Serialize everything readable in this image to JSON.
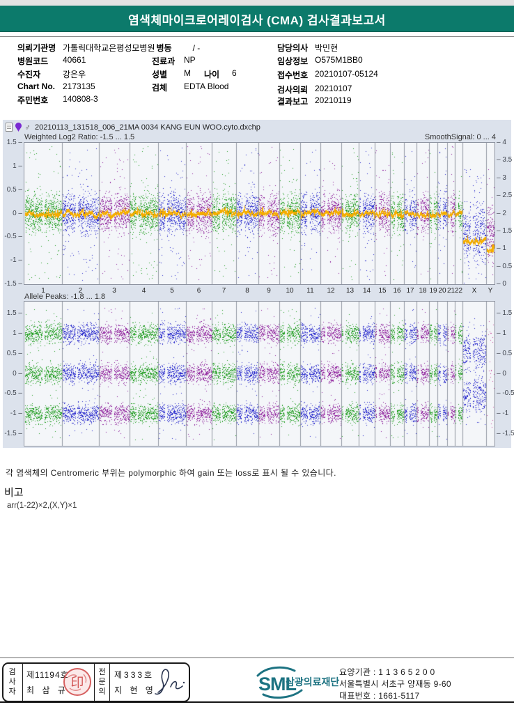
{
  "header": {
    "title": "염색체마이크로어레이검사 (CMA) 검사결과보고서",
    "banner_color": "#0c7a6b"
  },
  "patient": {
    "fields": [
      {
        "label": "의뢰기관명",
        "value": "가톨릭대학교은평성모병원"
      },
      {
        "label": "병동",
        "value": "/ -"
      },
      {
        "label": "병원코드",
        "value": "40661"
      },
      {
        "label": "진료과",
        "value": "NP"
      },
      {
        "label": "수진자",
        "value": "강은우"
      },
      {
        "label": "성별",
        "value": "M"
      },
      {
        "label": "나이",
        "value": "6"
      },
      {
        "label": "Chart No.",
        "value": "2173135"
      },
      {
        "label": "검체",
        "value": "EDTA Blood"
      },
      {
        "label": "주민번호",
        "value": "140808-3"
      },
      {
        "label": "담당의사",
        "value": "박민현"
      },
      {
        "label": "임상정보",
        "value": "O575M1BB0"
      },
      {
        "label": "접수번호",
        "value": "20210107-05124"
      },
      {
        "label": "검사의뢰",
        "value": "20210107"
      },
      {
        "label": "결과보고",
        "value": "20210119"
      }
    ]
  },
  "viewer": {
    "filename": "20210113_131518_006_21MA 0034 KANG EUN WOO.cyto.dxchp",
    "male_symbol": "♂",
    "icons": [
      "document-icon",
      "pin-icon",
      "male-icon"
    ]
  },
  "chart_data": [
    {
      "type": "scatter",
      "title": "Weighted Log2 Ratio: -1.5 ... 1.5",
      "right_axis_title": "SmoothSignal: 0 ... 4",
      "categories": [
        "1",
        "2",
        "3",
        "4",
        "5",
        "6",
        "7",
        "8",
        "9",
        "10",
        "11",
        "12",
        "13",
        "14",
        "15",
        "16",
        "17",
        "18",
        "19",
        "20",
        "21",
        "22",
        "X",
        "Y"
      ],
      "category_sizes_mb": [
        249,
        243,
        198,
        191,
        181,
        171,
        159,
        146,
        141,
        135,
        135,
        134,
        115,
        107,
        102,
        90,
        83,
        80,
        59,
        64,
        47,
        51,
        155,
        57
      ],
      "ylim": [
        -1.5,
        1.5
      ],
      "yticks_left": [
        1.5,
        1,
        0.5,
        0,
        -0.5,
        -1,
        -1.5
      ],
      "right_ylim": [
        0,
        4
      ],
      "yticks_right": [
        4,
        3.5,
        3,
        2.5,
        2,
        1.5,
        1,
        0.5,
        0
      ],
      "point_color_cycle": [
        "#1d9c1d",
        "#2626cc",
        "#8e1f9c"
      ],
      "signal_color": "#f5ad00",
      "segments": [
        {
          "chromosomes": "1-22",
          "log2_ratio": 0,
          "copy_number": 2
        },
        {
          "chromosomes": "X",
          "log2_ratio": -0.6,
          "copy_number": 1
        },
        {
          "chromosomes": "Y",
          "log2_ratio": -0.78,
          "copy_number": 1
        }
      ]
    },
    {
      "type": "scatter",
      "title": "Allele Peaks: -1.8 ... 1.8",
      "ylim": [
        -1.8,
        1.8
      ],
      "yticks": [
        1.5,
        1,
        0.5,
        0,
        -0.5,
        -1,
        -1.5
      ],
      "autosome_allele_bands": [
        1,
        0,
        -1
      ],
      "x_allele_bands": [
        0.55,
        -0.55
      ],
      "y_allele_bands": [
        1,
        0,
        -1
      ],
      "y_chrom_color": "#c44a9e"
    }
  ],
  "notes": {
    "centromere_note": "각 염색체의 Centromeric 부위는 polymorphic 하여 gain 또는 loss로 표시 될 수 있습니다.",
    "remark_title": "비고",
    "remark_value": "arr(1-22)×2,(X,Y)×1"
  },
  "footer": {
    "examiner": {
      "role": "검사자",
      "cert_no": "제11194호",
      "name": "최 삼 규"
    },
    "specialist": {
      "role": "전문의",
      "cert_no": "제333호",
      "name": "지 현 영"
    },
    "org": {
      "logo_text": "SML",
      "org_name": "삼광의료재단",
      "care_org_no": "요양기관 : 1 1 3 6 5 2 0 0",
      "address": "서울특별시 서초구 양재동 9-60",
      "phone": "대표번호 : 1661-5117",
      "logo_color": "#1d7382"
    }
  }
}
